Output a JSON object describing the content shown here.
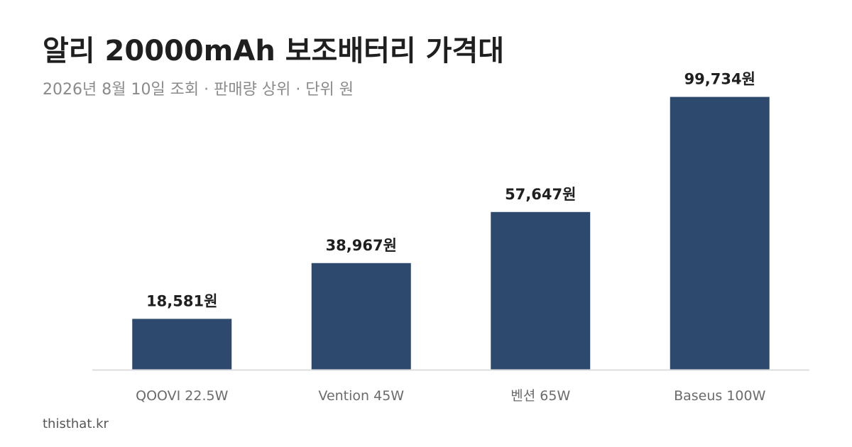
{
  "title": "알리 20000mAh 보조배터리 가격대",
  "subtitle": "2026년 8월 10일 조회 · 판매량 상위 · 단위 원",
  "source": "thisthat.kr",
  "colors": {
    "bar": "#2d4a6e",
    "axis": "#dddddd"
  },
  "chart_data": {
    "type": "bar",
    "categories": [
      "QOOVI 22.5W",
      "Vention 45W",
      "벤션 65W",
      "Baseus 100W"
    ],
    "values": [
      18581,
      38967,
      57647,
      99734
    ],
    "value_labels": [
      "18,581원",
      "38,967원",
      "57,647원",
      "99,734원"
    ],
    "title": "알리 20000mAh 보조배터리 가격대",
    "subtitle": "2026년 8월 10일 조회 · 판매량 상위 · 단위 원",
    "xlabel": "",
    "ylabel": "",
    "ylim": [
      0,
      110000
    ],
    "grid": false,
    "legend": "none"
  }
}
